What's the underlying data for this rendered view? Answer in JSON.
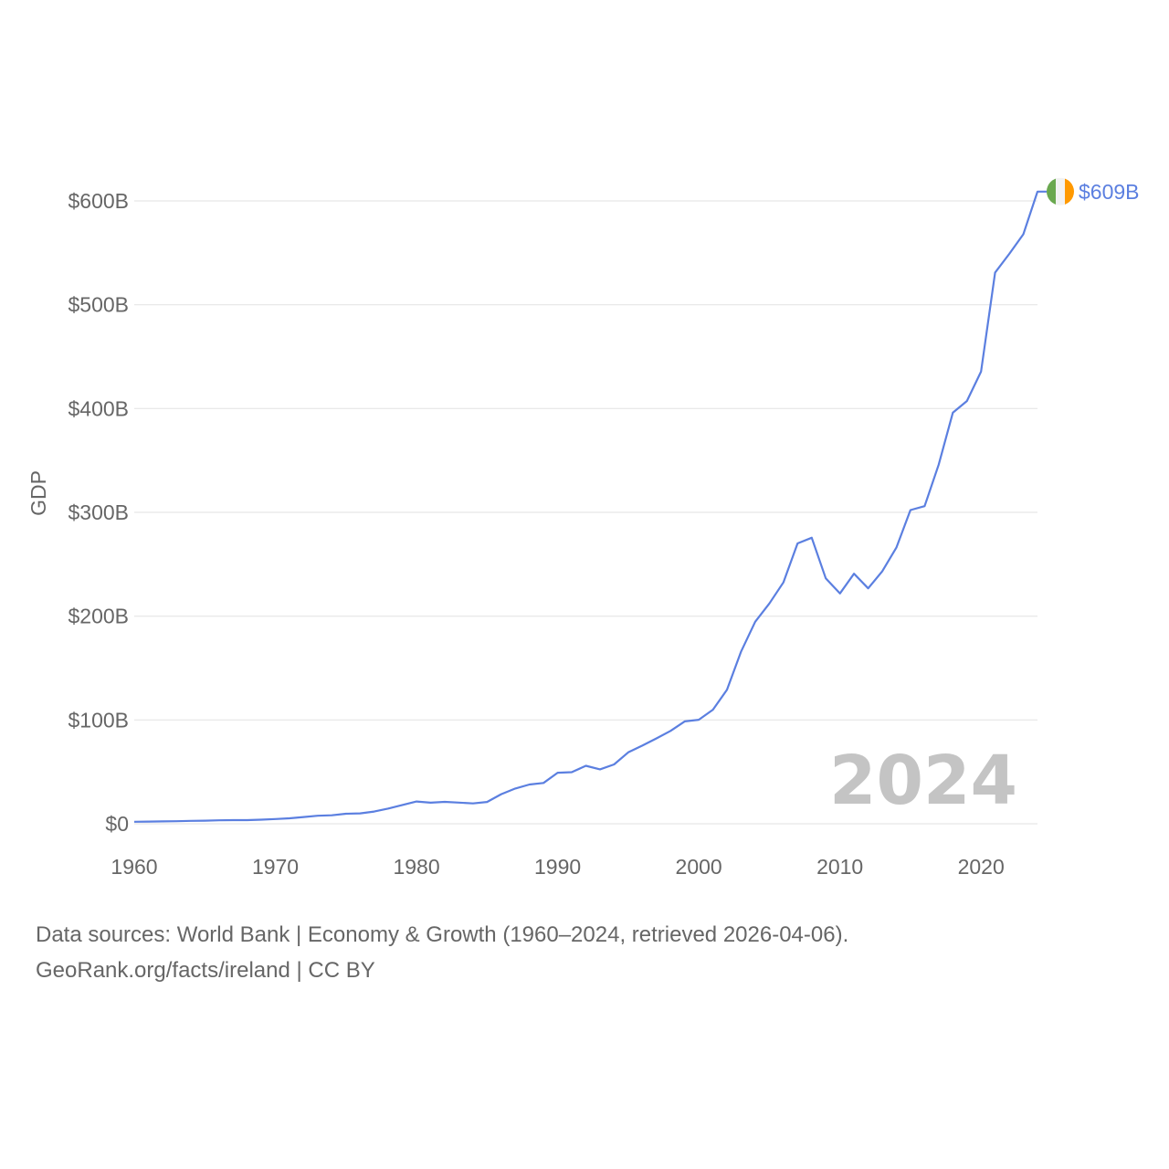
{
  "chart_data": {
    "type": "line",
    "ylabel": "GDP",
    "xlim": [
      1960,
      2024
    ],
    "ylim": [
      0,
      600
    ],
    "x_ticks": [
      1960,
      1970,
      1980,
      1990,
      2000,
      2010,
      2020
    ],
    "x_tick_labels": [
      "1960",
      "1970",
      "1980",
      "1990",
      "2000",
      "2010",
      "2020"
    ],
    "y_ticks": [
      0,
      100,
      200,
      300,
      400,
      500,
      600
    ],
    "y_tick_labels": [
      "$0",
      "$100B",
      "$200B",
      "$300B",
      "$400B",
      "$500B",
      "$600B"
    ],
    "grid": true,
    "current_year_label": "2024",
    "series": [
      {
        "name": "Ireland",
        "color": "#5b7fe0",
        "end_label": "$609B",
        "x": [
          1960,
          1961,
          1962,
          1963,
          1964,
          1965,
          1966,
          1967,
          1968,
          1969,
          1970,
          1971,
          1972,
          1973,
          1974,
          1975,
          1976,
          1977,
          1978,
          1979,
          1980,
          1981,
          1982,
          1983,
          1984,
          1985,
          1986,
          1987,
          1988,
          1989,
          1990,
          1991,
          1992,
          1993,
          1994,
          1995,
          1996,
          1997,
          1998,
          1999,
          2000,
          2001,
          2002,
          2003,
          2004,
          2005,
          2006,
          2007,
          2008,
          2009,
          2010,
          2011,
          2012,
          2013,
          2014,
          2015,
          2016,
          2017,
          2018,
          2019,
          2020,
          2021,
          2022,
          2023,
          2024
        ],
        "values": [
          1.9,
          2.1,
          2.3,
          2.5,
          2.8,
          3.0,
          3.3,
          3.5,
          3.5,
          4.0,
          4.6,
          5.3,
          6.5,
          7.7,
          8.2,
          9.7,
          10.0,
          11.8,
          14.7,
          18.1,
          21.5,
          20.3,
          21.1,
          20.4,
          19.6,
          21.0,
          28.5,
          34.0,
          37.8,
          39.3,
          49.2,
          49.7,
          55.9,
          52.4,
          57.2,
          68.8,
          75.3,
          82.3,
          89.5,
          98.6,
          100.2,
          109.9,
          129.1,
          166.0,
          194.6,
          212.2,
          232.5,
          270.1,
          275.5,
          236.4,
          221.9,
          240.9,
          226.8,
          243.2,
          266.0,
          302.2,
          306.0,
          345.9,
          396.0,
          407.2,
          435.6,
          531.0,
          549.0,
          567.9,
          609.0
        ]
      }
    ]
  },
  "flag": {
    "colors": [
      "#6aa84f",
      "#f2f2f2",
      "#ff9900"
    ]
  },
  "footer": {
    "line1": "Data sources: World Bank | Economy & Growth (1960–2024, retrieved 2026-04-06).",
    "line2": "GeoRank.org/facts/ireland | CC BY"
  }
}
